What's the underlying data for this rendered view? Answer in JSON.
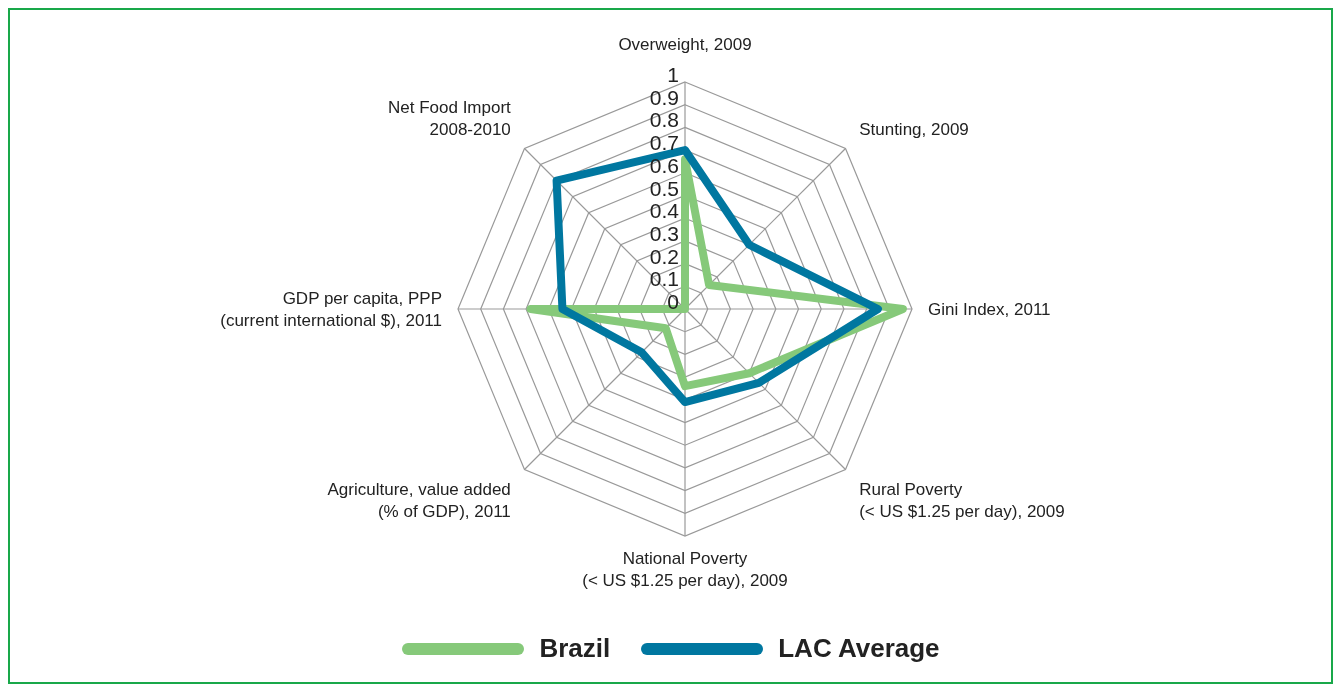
{
  "chart_data": {
    "type": "radar",
    "categories": [
      "Overweight, 2009",
      "Stunting, 2009",
      "Gini Index, 2011",
      "Rural Poverty\n(< US $1.25 per day), 2009",
      "National Poverty\n(< US $1.25 per day), 2009",
      "Agriculture, value added\n(% of GDP), 2011",
      "GDP per capita, PPP\n(current international $), 2011",
      "Net Food Import\n2008-2010"
    ],
    "series": [
      {
        "name": "Brazil",
        "color": "#86c97a",
        "values": [
          0.66,
          0.15,
          0.96,
          0.4,
          0.34,
          0.12,
          0.68,
          0
        ]
      },
      {
        "name": "LAC Average",
        "color": "#0077a0",
        "values": [
          0.7,
          0.4,
          0.85,
          0.46,
          0.41,
          0.27,
          0.54,
          0.8
        ]
      }
    ],
    "ylim": [
      0,
      1
    ],
    "yticks": [
      0,
      0.1,
      0.2,
      0.3,
      0.4,
      0.5,
      0.6,
      0.7,
      0.8,
      0.9,
      1
    ],
    "legend": "bottom",
    "line_style": "solid",
    "marker": "none"
  }
}
